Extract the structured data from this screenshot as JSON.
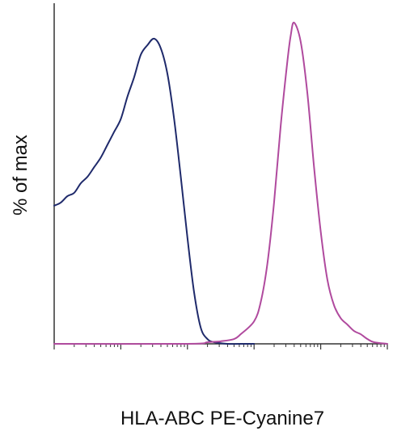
{
  "chart_data": {
    "type": "line",
    "title": "",
    "xlabel": "HLA-ABC PE-Cyanine7",
    "ylabel": "% of max",
    "xscale": "log",
    "xlim": [
      0,
      5
    ],
    "ylim": [
      0,
      100
    ],
    "x_tick_labels_shown": false,
    "y_tick_labels_shown": false,
    "grid": false,
    "legend": "none",
    "series": [
      {
        "color": "#1f2a6b",
        "x": [
          0.0,
          0.1,
          0.2,
          0.3,
          0.4,
          0.5,
          0.6,
          0.7,
          0.8,
          0.9,
          1.0,
          1.1,
          1.2,
          1.3,
          1.4,
          1.5,
          1.6,
          1.7,
          1.8,
          1.9,
          2.0,
          2.1,
          2.2,
          2.3,
          2.4,
          2.6,
          2.8,
          3.0
        ],
        "y": [
          43,
          44,
          46,
          47,
          50,
          52,
          55,
          58,
          62,
          66,
          70,
          77,
          83,
          90,
          93,
          95,
          92,
          84,
          70,
          52,
          33,
          16,
          5,
          1.5,
          0.5,
          0,
          0,
          0
        ]
      },
      {
        "color": "#b04a9e",
        "x": [
          0.0,
          2.0,
          2.3,
          2.5,
          2.7,
          2.8,
          3.0,
          3.1,
          3.2,
          3.3,
          3.4,
          3.5,
          3.55,
          3.6,
          3.7,
          3.8,
          3.9,
          4.0,
          4.1,
          4.2,
          4.3,
          4.4,
          4.5,
          4.6,
          4.7,
          4.8,
          5.0
        ],
        "y": [
          0,
          0,
          0.5,
          0.8,
          1.5,
          3,
          7,
          13,
          25,
          44,
          68,
          88,
          96,
          100,
          94,
          78,
          55,
          35,
          20,
          12,
          8,
          6,
          4,
          3,
          1.5,
          0.5,
          0
        ]
      }
    ]
  }
}
